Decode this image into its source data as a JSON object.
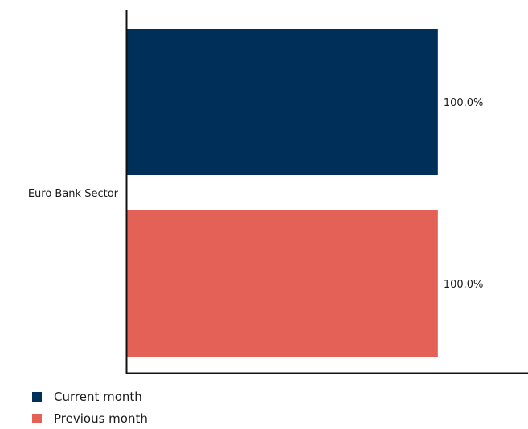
{
  "chart_data": {
    "type": "bar",
    "orientation": "horizontal",
    "categories": [
      "Euro Bank Sector"
    ],
    "series": [
      {
        "name": "Current month",
        "values": [
          100.0
        ],
        "color": "#00305a",
        "label": "100.0%"
      },
      {
        "name": "Previous month",
        "values": [
          100.0
        ],
        "color": "#e46157",
        "label": "100.0%"
      }
    ],
    "xlim": [
      0,
      129
    ],
    "xlabel": "",
    "ylabel": "",
    "title": "",
    "grid": false,
    "legend_position": "bottom-left"
  }
}
